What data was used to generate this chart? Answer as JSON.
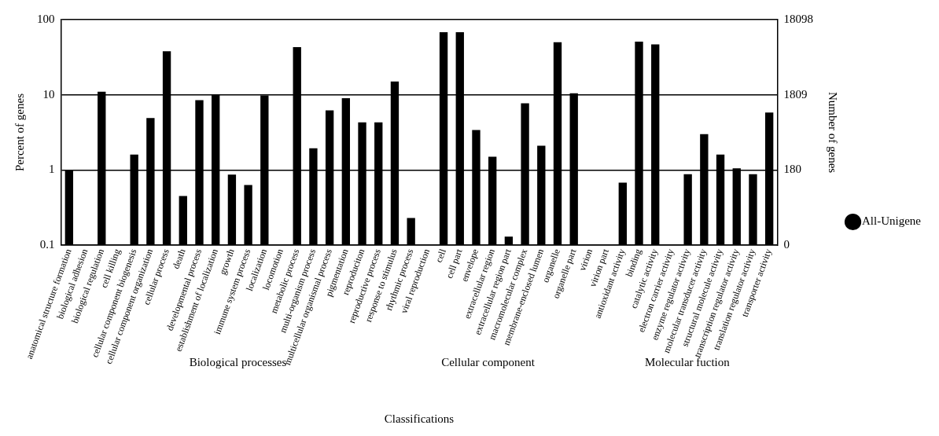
{
  "chart_data": {
    "type": "bar",
    "xlabel": "Classifications",
    "ylabel": "Percent of genes",
    "y2label": "Number of genes",
    "categories": [
      "anatomical structure formation",
      "biological adhesion",
      "biological regulation",
      "cell killing",
      "cellular component biogenesis",
      "cellular component organization",
      "cellular process",
      "death",
      "developmental process",
      "establishment of localization",
      "growth",
      "immune system process",
      "localization",
      "locomotion",
      "metabolic process",
      "multi-organism process",
      "multicellular organismal process",
      "pigmentation",
      "reproduciton",
      "reproductive process",
      "response to stimulus",
      "rhythmic process",
      "viral reproduction",
      "cell",
      "cell part",
      "envelope",
      "extracellular region",
      "extracellular region part",
      "macromolecular complex",
      "membrane-enclosed lumen",
      "organelle",
      "organelle part",
      "virion",
      "virion part",
      "antioxidant activity",
      "binding",
      "catalytic activity",
      "electron carrier activity",
      "enzyme regulator activity",
      "molecular transducer activity",
      "structural molecule activity",
      "transcription regulator activity",
      "translation regulator activity",
      "transporter activity"
    ],
    "series": [
      {
        "name": "All-Unigene",
        "color": "#000000",
        "values": [
          1.0,
          null,
          11,
          null,
          1.6,
          4.9,
          38,
          0.45,
          8.5,
          10,
          0.87,
          0.63,
          9.8,
          null,
          43,
          1.95,
          6.2,
          9,
          4.3,
          4.3,
          15,
          0.23,
          null,
          68,
          68,
          3.4,
          1.5,
          0.13,
          7.7,
          2.1,
          50,
          10.5,
          null,
          null,
          0.68,
          51,
          47,
          null,
          0.88,
          3.0,
          1.6,
          1.05,
          0.88,
          5.8
        ]
      }
    ],
    "log": "y",
    "ylim": [
      0.1,
      100
    ],
    "yticks": [
      0.1,
      1,
      10,
      100
    ],
    "grid": "y",
    "legend": "right",
    "annotations": [
      "Biological processes",
      "Cellular component",
      "Molecular fuction",
      "0",
      "180",
      "1809",
      "18098"
    ]
  }
}
